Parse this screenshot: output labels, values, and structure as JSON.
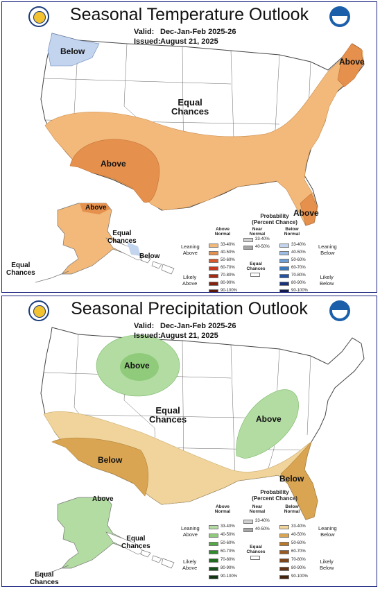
{
  "temperature": {
    "title": "Seasonal Temperature Outlook",
    "valid_key": "Valid:",
    "valid_val": "Dec-Jan-Feb 2025-26",
    "issued_key": "Issued:",
    "issued_val": "August 21, 2025",
    "labels": {
      "below": "Below",
      "above_ne": "Above",
      "equal_l1": "Equal",
      "equal_l2": "Chances",
      "above_sw": "Above",
      "above_fl": "Above",
      "ak_above": "Above",
      "ak_equal_l1": "Equal",
      "ak_equal_l2": "Chances",
      "ak_below": "Below",
      "hi_equal_l1": "Equal",
      "hi_equal_l2": "Chances"
    },
    "legend": {
      "title_l1": "Probability",
      "title_l2": "(Percent Chance)",
      "above_l1": "Above",
      "above_l2": "Normal",
      "near_l1": "Near",
      "near_l2": "Normal",
      "below_l1": "Below",
      "below_l2": "Normal",
      "leaning_above_l1": "Leaning",
      "leaning_above_l2": "Above",
      "likely_above_l1": "Likely",
      "likely_above_l2": "Above",
      "leaning_below_l1": "Leaning",
      "leaning_below_l2": "Below",
      "likely_below_l1": "Likely",
      "likely_below_l2": "Below",
      "ec_l1": "Equal",
      "ec_l2": "Chances",
      "above_bins": [
        "33-40%",
        "40-50%",
        "50-60%",
        "60-70%",
        "70-80%",
        "80-90%",
        "90-100%"
      ],
      "near_bins": [
        "33-40%",
        "40-50%"
      ],
      "below_bins": [
        "33-40%",
        "40-50%",
        "50-60%",
        "60-70%",
        "70-80%",
        "80-90%",
        "90-100%"
      ],
      "above_colors": [
        "#f2b97a",
        "#e5904c",
        "#d8592b",
        "#c53a1f",
        "#a72a12",
        "#84220d",
        "#5e1808"
      ],
      "near_colors": [
        "#d0d0d0",
        "#a6a6a6"
      ],
      "below_colors": [
        "#c3d4ee",
        "#9ebde4",
        "#6c9fd4",
        "#3b79bb",
        "#2553a0",
        "#1b327b",
        "#131c4d"
      ]
    }
  },
  "precipitation": {
    "title": "Seasonal Precipitation Outlook",
    "valid_key": "Valid:",
    "valid_val": "Dec-Jan-Feb 2025-26",
    "issued_key": "Issued:",
    "issued_val": "August 21, 2025",
    "labels": {
      "above_nw": "Above",
      "equal_l1": "Equal",
      "equal_l2": "Chances",
      "above_ov": "Above",
      "below_sw": "Below",
      "below_se": "Below",
      "ak_above": "Above",
      "ak_equal_l1": "Equal",
      "ak_equal_l2": "Chances",
      "hi_equal_l1": "Equal",
      "hi_equal_l2": "Chances"
    },
    "legend": {
      "title_l1": "Probability",
      "title_l2": "(Percent Chance)",
      "above_l1": "Above",
      "above_l2": "Normal",
      "near_l1": "Near",
      "near_l2": "Normal",
      "below_l1": "Below",
      "below_l2": "Normal",
      "leaning_above_l1": "Leaning",
      "leaning_above_l2": "Above",
      "likely_above_l1": "Likely",
      "likely_above_l2": "Above",
      "leaning_below_l1": "Leaning",
      "leaning_below_l2": "Below",
      "likely_below_l1": "Likely",
      "likely_below_l2": "Below",
      "ec_l1": "Equal",
      "ec_l2": "Chances",
      "above_bins": [
        "33-40%",
        "40-50%",
        "50-60%",
        "60-70%",
        "70-80%",
        "80-90%",
        "90-100%"
      ],
      "near_bins": [
        "33-40%",
        "40-50%"
      ],
      "below_bins": [
        "33-40%",
        "40-50%",
        "50-60%",
        "60-70%",
        "70-80%",
        "80-90%",
        "90-100%"
      ],
      "above_colors": [
        "#b3dca3",
        "#8fcb7a",
        "#55a845",
        "#2f8b2c",
        "#1f6b1f",
        "#17501a",
        "#0f3512"
      ],
      "near_colors": [
        "#d0d0d0",
        "#a6a6a6"
      ],
      "below_colors": [
        "#f0d49b",
        "#d9a552",
        "#b9792d",
        "#9a5b23",
        "#7d451b",
        "#613314",
        "#45240e"
      ]
    }
  }
}
